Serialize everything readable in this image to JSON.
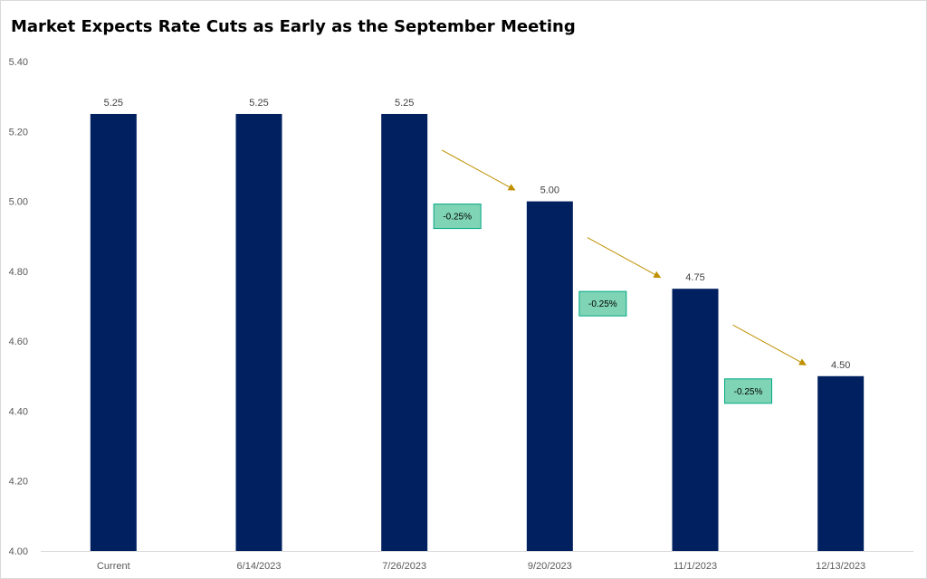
{
  "chart_data": {
    "type": "bar",
    "title": "Market Expects Rate Cuts as Early as the September Meeting",
    "xlabel": "",
    "ylabel": "",
    "categories": [
      "Current",
      "6/14/2023",
      "7/26/2023",
      "9/20/2023",
      "11/1/2023",
      "12/13/2023"
    ],
    "values": [
      5.25,
      5.25,
      5.25,
      5.0,
      4.75,
      4.5
    ],
    "value_labels": [
      "5.25",
      "5.25",
      "5.25",
      "5.00",
      "4.75",
      "4.50"
    ],
    "ylim": [
      4.0,
      5.4
    ],
    "yticks": [
      "4.00",
      "4.20",
      "4.40",
      "4.60",
      "4.80",
      "5.00",
      "5.20",
      "5.40"
    ],
    "grid": false,
    "annotations": [
      {
        "text": "-0.25%",
        "between": [
          "7/26/2023",
          "9/20/2023"
        ]
      },
      {
        "text": "-0.25%",
        "between": [
          "9/20/2023",
          "11/1/2023"
        ]
      },
      {
        "text": "-0.25%",
        "between": [
          "11/1/2023",
          "12/13/2023"
        ]
      }
    ]
  },
  "colors": {
    "bar": "#002060",
    "arrow": "#BF9000",
    "callout_fill": "#7FD4B5",
    "callout_border": "#00A884"
  }
}
